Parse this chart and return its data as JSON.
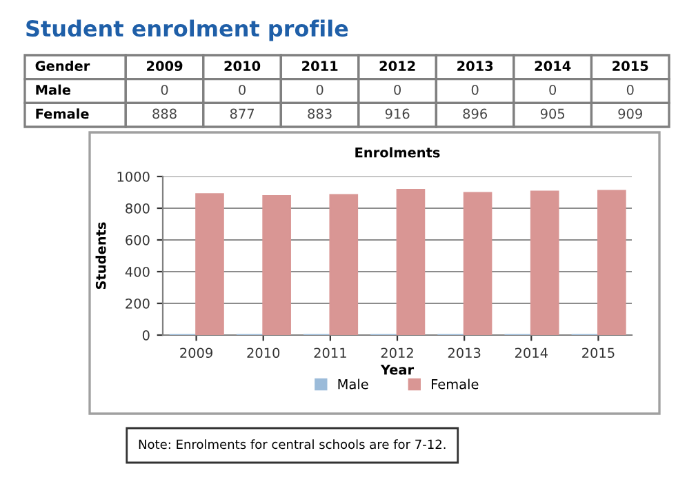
{
  "chart_data": {
    "type": "bar",
    "title": "Student enrolment profile",
    "subtitle": "Enrolments",
    "xlabel": "Year",
    "ylabel": "Students",
    "legend_title": "Gender",
    "categories": [
      "2009",
      "2010",
      "2011",
      "2012",
      "2013",
      "2014",
      "2015"
    ],
    "series": [
      {
        "name": "Male",
        "color": "#9bbbd9",
        "values": [
          0,
          0,
          0,
          0,
          0,
          0,
          0
        ]
      },
      {
        "name": "Female",
        "color": "#d99694",
        "values": [
          888,
          877,
          883,
          916,
          896,
          905,
          909
        ]
      }
    ],
    "ylim": [
      0,
      1000
    ],
    "yticks": [
      0,
      200,
      400,
      600,
      800,
      1000
    ],
    "grid": "y",
    "legend": "bottom",
    "data_labels": true,
    "annotations": [
      "Note: Enrolments for central schools are for 7-12."
    ]
  }
}
